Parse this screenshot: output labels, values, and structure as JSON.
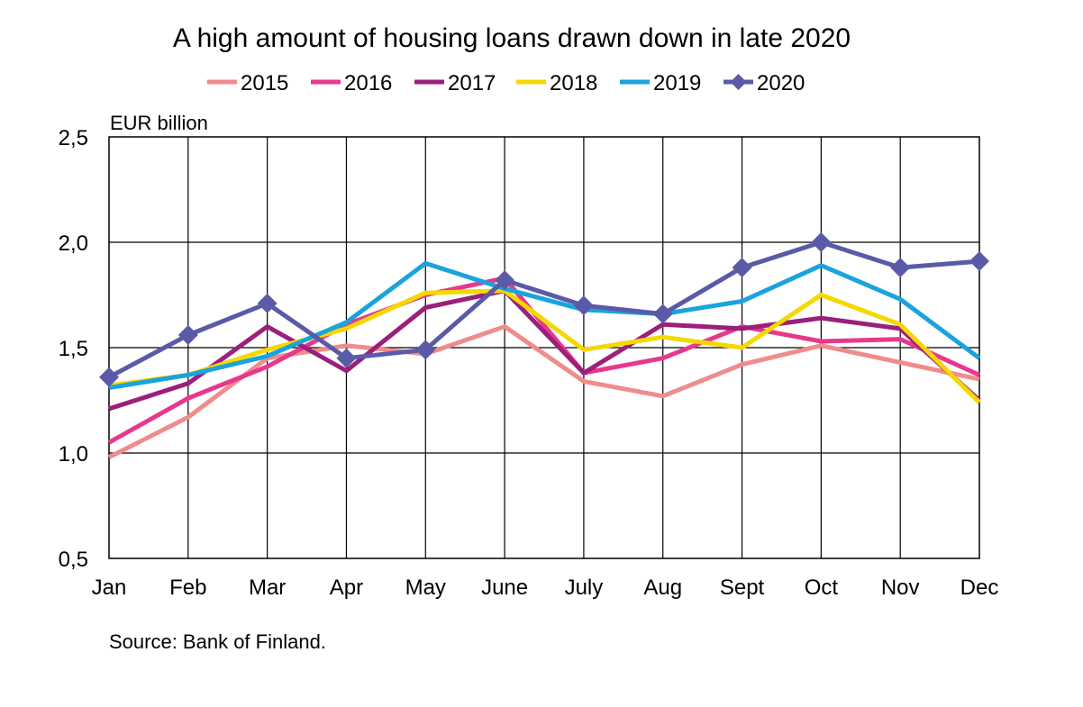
{
  "chart_data": {
    "type": "line",
    "title": "A high amount of housing loans drawn down in late 2020",
    "ylabel": "EUR billion",
    "xlabel": "",
    "categories": [
      "Jan",
      "Feb",
      "Mar",
      "Apr",
      "May",
      "June",
      "July",
      "Aug",
      "Sept",
      "Oct",
      "Nov",
      "Dec"
    ],
    "ylim": [
      0.5,
      2.5
    ],
    "yticks": [
      "0,5",
      "1,0",
      "1,5",
      "2,0",
      "2,5"
    ],
    "ytick_values": [
      0.5,
      1.0,
      1.5,
      2.0,
      2.5
    ],
    "grid": true,
    "legend_position": "top",
    "series": [
      {
        "name": "2015",
        "color": "#f08c8c",
        "marker": "none",
        "values": [
          0.98,
          1.17,
          1.45,
          1.51,
          1.47,
          1.6,
          1.34,
          1.27,
          1.42,
          1.51,
          1.43,
          1.35
        ]
      },
      {
        "name": "2016",
        "color": "#e8388c",
        "marker": "none",
        "values": [
          1.05,
          1.26,
          1.41,
          1.61,
          1.75,
          1.83,
          1.38,
          1.45,
          1.6,
          1.53,
          1.54,
          1.37
        ]
      },
      {
        "name": "2017",
        "color": "#9b1f7b",
        "marker": "none",
        "values": [
          1.21,
          1.33,
          1.6,
          1.39,
          1.69,
          1.77,
          1.38,
          1.61,
          1.59,
          1.64,
          1.59,
          1.25
        ]
      },
      {
        "name": "2018",
        "color": "#f5d800",
        "marker": "none",
        "values": [
          1.32,
          1.37,
          1.49,
          1.59,
          1.76,
          1.77,
          1.49,
          1.55,
          1.5,
          1.75,
          1.61,
          1.24
        ]
      },
      {
        "name": "2019",
        "color": "#1aa3dc",
        "marker": "none",
        "values": [
          1.31,
          1.37,
          1.46,
          1.62,
          1.9,
          1.78,
          1.68,
          1.66,
          1.72,
          1.89,
          1.73,
          1.45
        ]
      },
      {
        "name": "2020",
        "color": "#5a5aa8",
        "marker": "diamond",
        "values": [
          1.36,
          1.56,
          1.71,
          1.45,
          1.49,
          1.82,
          1.7,
          1.66,
          1.88,
          2.0,
          1.88,
          1.91
        ]
      }
    ],
    "source": "Source: Bank of Finland."
  }
}
